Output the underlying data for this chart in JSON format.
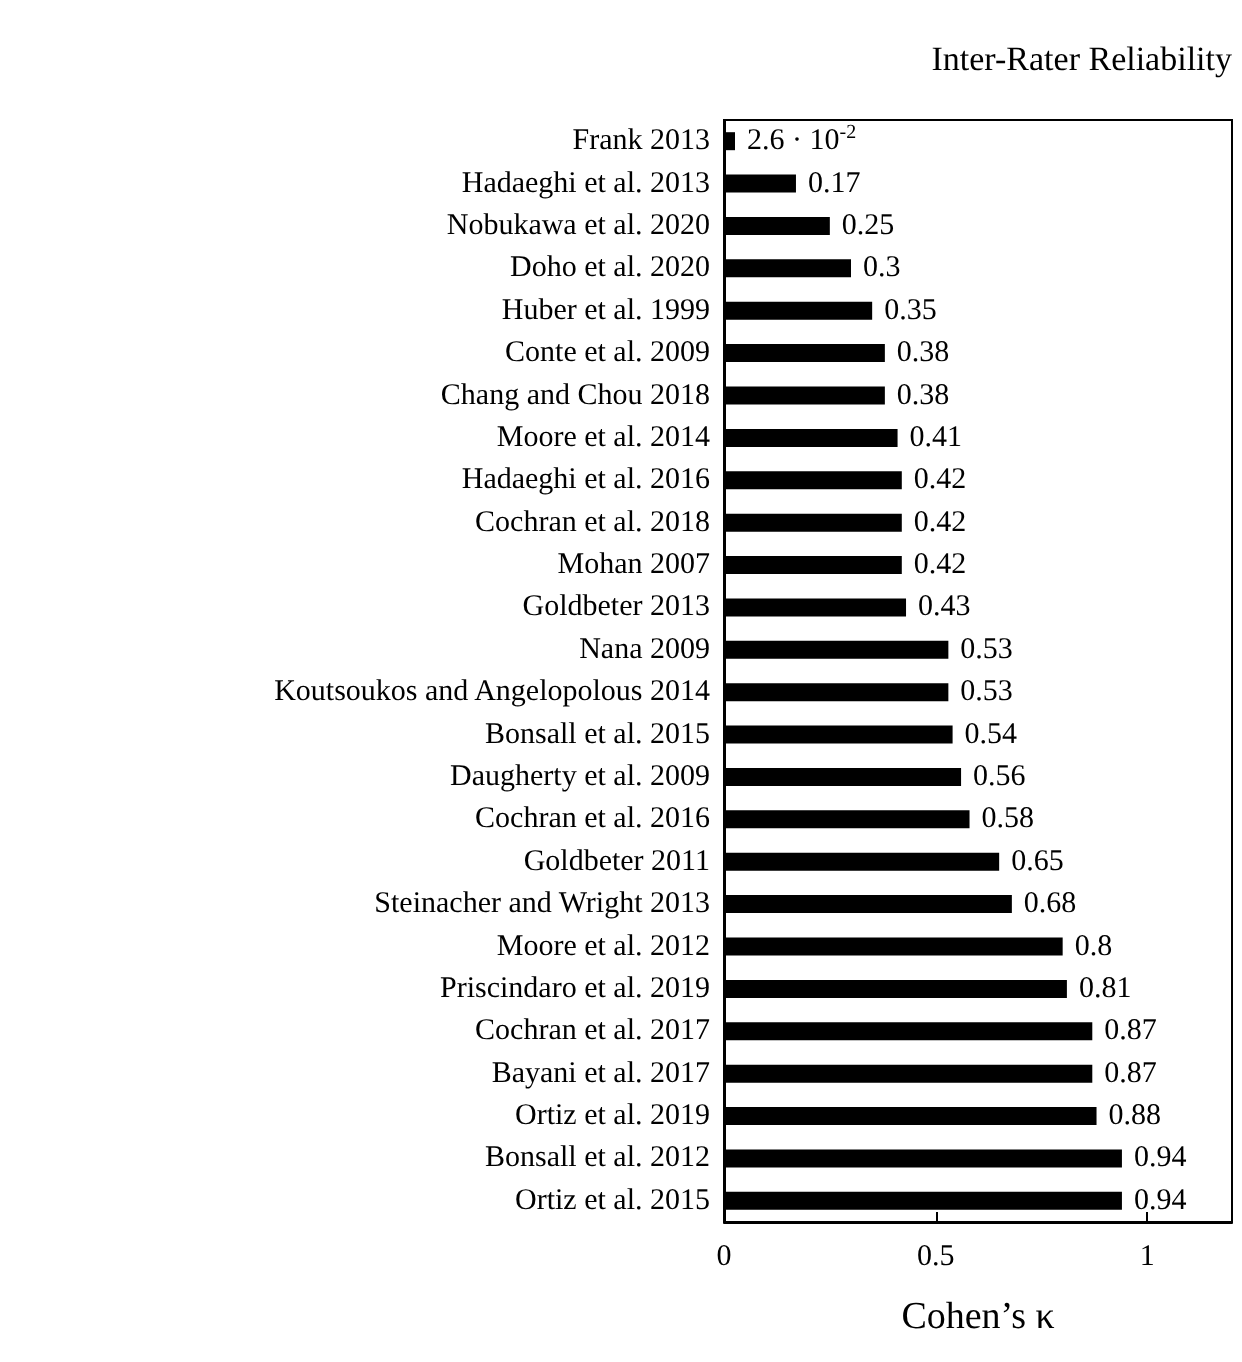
{
  "chart_data": {
    "type": "bar",
    "orientation": "horizontal",
    "title": "Inter-Rater Reliability",
    "xlabel": "Cohen’s κ",
    "categories": [
      "Frank 2013",
      "Hadaeghi et al. 2013",
      "Nobukawa et al. 2020",
      "Doho et al. 2020",
      "Huber et al. 1999",
      "Conte et al. 2009",
      "Chang and Chou 2018",
      "Moore et al. 2014",
      "Hadaeghi et al. 2016",
      "Cochran et al. 2018",
      "Mohan 2007",
      "Goldbeter 2013",
      "Nana 2009",
      "Koutsoukos and Angelopolous 2014",
      "Bonsall et al. 2015",
      "Daugherty et al. 2009",
      "Cochran et al. 2016",
      "Goldbeter 2011",
      "Steinacher and Wright 2013",
      "Moore et al. 2012",
      "Priscindaro et al. 2019",
      "Cochran et al. 2017",
      "Bayani et al. 2017",
      "Ortiz et al. 2019",
      "Bonsall et al. 2012",
      "Ortiz et al. 2015"
    ],
    "values": [
      0.026,
      0.17,
      0.25,
      0.3,
      0.35,
      0.38,
      0.38,
      0.41,
      0.42,
      0.42,
      0.42,
      0.43,
      0.53,
      0.53,
      0.54,
      0.56,
      0.58,
      0.65,
      0.68,
      0.8,
      0.81,
      0.87,
      0.87,
      0.88,
      0.94,
      0.94
    ],
    "value_labels": [
      "2.6 · 10$^{-2}$",
      "0.17",
      "0.25",
      "0.3",
      "0.35",
      "0.38",
      "0.38",
      "0.41",
      "0.42",
      "0.42",
      "0.42",
      "0.43",
      "0.53",
      "0.53",
      "0.54",
      "0.56",
      "0.58",
      "0.65",
      "0.68",
      "0.8",
      "0.81",
      "0.87",
      "0.87",
      "0.88",
      "0.94",
      "0.94"
    ],
    "color": "#000000",
    "xlim": [
      0,
      1.2
    ],
    "xticks": [
      0,
      0.5,
      1
    ]
  }
}
